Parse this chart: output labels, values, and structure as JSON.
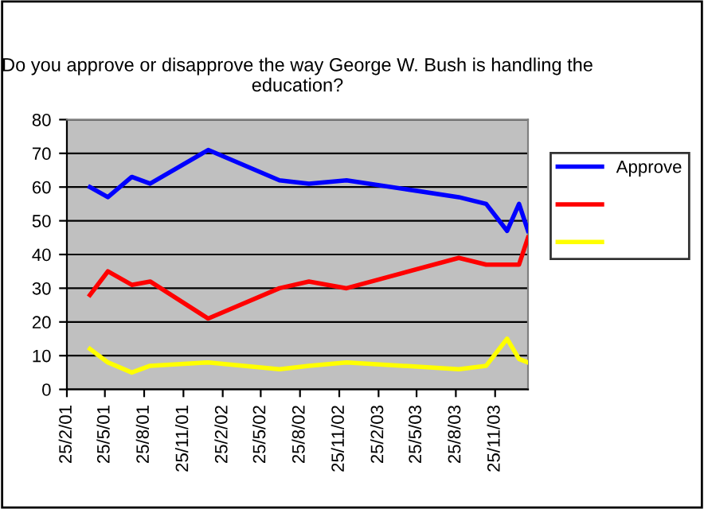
{
  "chart_data": {
    "type": "line",
    "title": "Do you approve or disapprove the way George W. Bush is handling the education?",
    "x": [
      "2001-04-20",
      "2001-06-01",
      "2001-07-27",
      "2001-09-08",
      "2002-01-22",
      "2002-07-08",
      "2002-09-15",
      "2002-12-12",
      "2003-09-01",
      "2003-11-04",
      "2003-12-23",
      "2004-01-20",
      "2004-02-10"
    ],
    "series": [
      {
        "name": "Approve",
        "color": "#0000ff",
        "values": [
          60,
          57,
          63,
          61,
          71,
          62,
          61,
          62,
          57,
          55,
          47,
          55,
          47
        ]
      },
      {
        "color": "#ff0000",
        "values": [
          28,
          35,
          31,
          32,
          21,
          30,
          32,
          30,
          39,
          37,
          37,
          37,
          45
        ]
      },
      {
        "color": "#ffff00",
        "values": [
          12,
          8,
          5,
          7,
          8,
          6,
          7,
          8,
          6,
          7,
          15,
          9,
          8
        ]
      }
    ],
    "xlim": [
      "2001-02-25",
      "2004-02-10"
    ],
    "xticks": [
      {
        "value": "2001-02-25",
        "label": "25/2/01"
      },
      {
        "value": "2001-05-25",
        "label": "25/5/01"
      },
      {
        "value": "2001-08-25",
        "label": "25/8/01"
      },
      {
        "value": "2001-11-25",
        "label": "25/11/01"
      },
      {
        "value": "2002-02-25",
        "label": "25/2/02"
      },
      {
        "value": "2002-05-25",
        "label": "25/5/02"
      },
      {
        "value": "2002-08-25",
        "label": "25/8/02"
      },
      {
        "value": "2002-11-25",
        "label": "25/11/02"
      },
      {
        "value": "2003-02-25",
        "label": "25/2/03"
      },
      {
        "value": "2003-05-25",
        "label": "25/5/03"
      },
      {
        "value": "2003-08-25",
        "label": "25/8/03"
      },
      {
        "value": "2003-11-25",
        "label": "25/11/03"
      }
    ],
    "ylim": [
      0,
      80
    ],
    "yticks": [
      0,
      10,
      20,
      30,
      40,
      50,
      60,
      70,
      80
    ],
    "grid": "y",
    "legend": "right",
    "marker": "none",
    "line_style": "solid"
  }
}
